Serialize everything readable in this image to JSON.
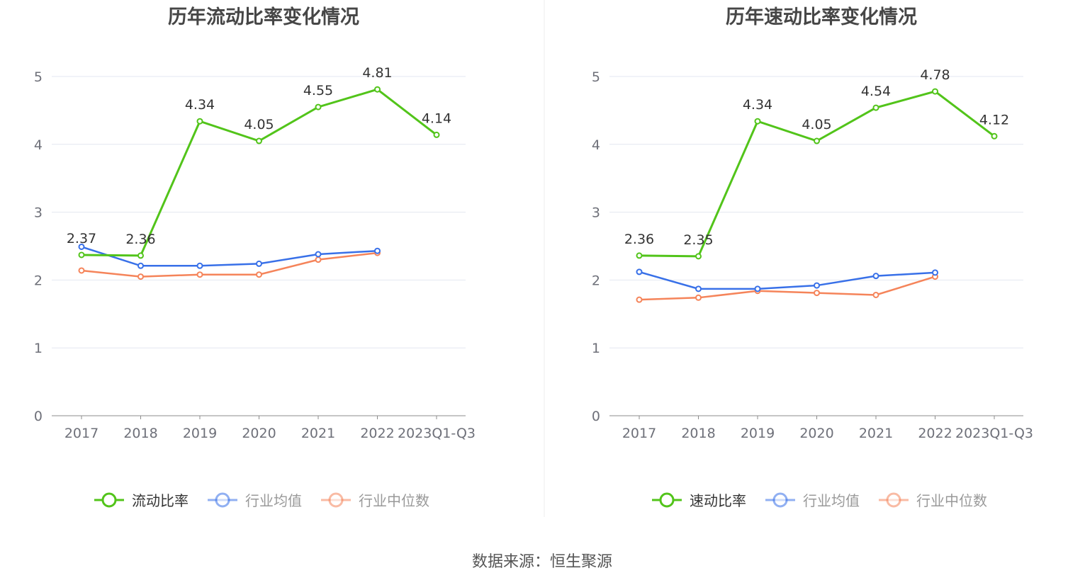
{
  "source": "数据来源：恒生聚源",
  "colors": {
    "main": "#52c41a",
    "avg": "#3870e8",
    "median": "#f5845a",
    "grid": "#e3e7f0",
    "axis": "#8c8c8c"
  },
  "chart_data": [
    {
      "type": "line",
      "title": "历年流动比率变化情况",
      "categories": [
        "2017",
        "2018",
        "2019",
        "2020",
        "2021",
        "2022",
        "2023Q1-Q3"
      ],
      "ylim": [
        0,
        5
      ],
      "yticks": [
        "0",
        "1",
        "2",
        "3",
        "4",
        "5"
      ],
      "grid": true,
      "legend": "bottom",
      "series": [
        {
          "name": "流动比率",
          "values": [
            2.37,
            2.36,
            4.34,
            4.05,
            4.55,
            4.81,
            4.14
          ],
          "labels": [
            "2.37",
            "2.36",
            "4.34",
            "4.05",
            "4.55",
            "4.81",
            "4.14"
          ]
        },
        {
          "name": "行业均值",
          "values": [
            2.49,
            2.21,
            2.21,
            2.24,
            2.38,
            2.43,
            null
          ]
        },
        {
          "name": "行业中位数",
          "values": [
            2.14,
            2.05,
            2.08,
            2.08,
            2.3,
            2.4,
            null
          ]
        }
      ]
    },
    {
      "type": "line",
      "title": "历年速动比率变化情况",
      "categories": [
        "2017",
        "2018",
        "2019",
        "2020",
        "2021",
        "2022",
        "2023Q1-Q3"
      ],
      "ylim": [
        0,
        5
      ],
      "yticks": [
        "0",
        "1",
        "2",
        "3",
        "4",
        "5"
      ],
      "grid": true,
      "legend": "bottom",
      "series": [
        {
          "name": "速动比率",
          "values": [
            2.36,
            2.35,
            4.34,
            4.05,
            4.54,
            4.78,
            4.12
          ],
          "labels": [
            "2.36",
            "2.35",
            "4.34",
            "4.05",
            "4.54",
            "4.78",
            "4.12"
          ]
        },
        {
          "name": "行业均值",
          "values": [
            2.12,
            1.87,
            1.87,
            1.92,
            2.06,
            2.11,
            null
          ]
        },
        {
          "name": "行业中位数",
          "values": [
            1.71,
            1.74,
            1.84,
            1.81,
            1.78,
            2.05,
            null
          ]
        }
      ]
    }
  ]
}
